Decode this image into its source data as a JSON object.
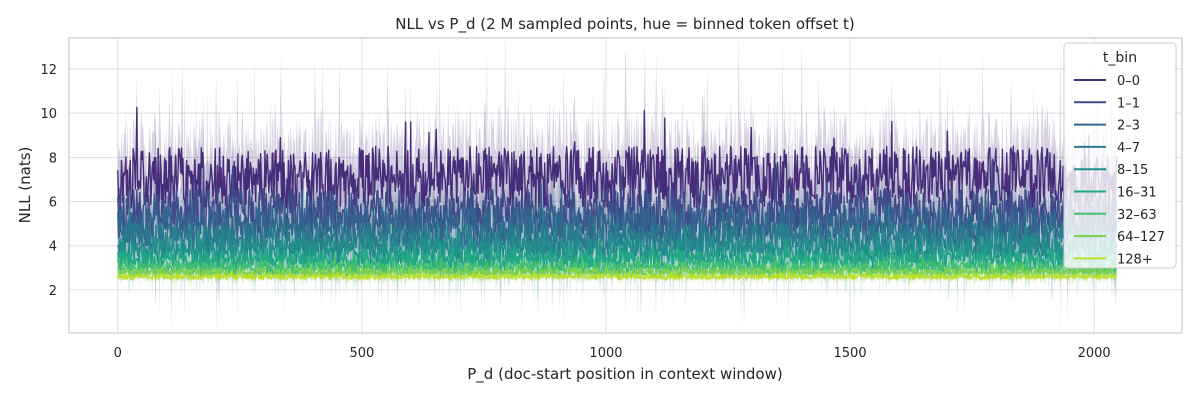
{
  "chart_data": {
    "type": "line",
    "title": "NLL vs P_d (2 M sampled points, hue = binned token offset t)",
    "xlabel": "P_d  (doc-start position in context window)",
    "ylabel": "NLL (nats)",
    "xlim": [
      -100,
      2180
    ],
    "ylim": [
      0.05,
      13.4
    ],
    "xticks": [
      0,
      500,
      1000,
      1500,
      2000
    ],
    "yticks": [
      2,
      4,
      6,
      8,
      10,
      12
    ],
    "grid": true,
    "legend": {
      "title": "t_bin",
      "placement": "top-right"
    },
    "x_range": [
      0,
      2047
    ],
    "series": [
      {
        "name": "0–0",
        "color": "#472c7a",
        "mean": 7.1,
        "spread": 1.4,
        "line_alpha": 1.0,
        "band_alpha": 0.22
      },
      {
        "name": "1–1",
        "color": "#3e4c8a",
        "mean": 5.5,
        "spread": 1.1,
        "line_alpha": 1.0,
        "band_alpha": 0.22
      },
      {
        "name": "2–3",
        "color": "#32658e",
        "mean": 4.9,
        "spread": 0.9,
        "line_alpha": 1.0,
        "band_alpha": 0.22
      },
      {
        "name": "4–7",
        "color": "#297b8e",
        "mean": 4.3,
        "spread": 0.75,
        "line_alpha": 1.0,
        "band_alpha": 0.22
      },
      {
        "name": "8–15",
        "color": "#21908d",
        "mean": 3.8,
        "spread": 0.6,
        "line_alpha": 1.0,
        "band_alpha": 0.22
      },
      {
        "name": "16–31",
        "color": "#22a884",
        "mean": 3.35,
        "spread": 0.45,
        "line_alpha": 1.0,
        "band_alpha": 0.22
      },
      {
        "name": "32–63",
        "color": "#44bf70",
        "mean": 3.0,
        "spread": 0.3,
        "line_alpha": 1.0,
        "band_alpha": 0.22
      },
      {
        "name": "64–127",
        "color": "#7ad151",
        "mean": 2.8,
        "spread": 0.2,
        "line_alpha": 1.0,
        "band_alpha": 0.22
      },
      {
        "name": "128+",
        "color": "#bddf26",
        "mean": 2.6,
        "spread": 0.12,
        "line_alpha": 1.0,
        "band_alpha": 0.22
      }
    ]
  }
}
